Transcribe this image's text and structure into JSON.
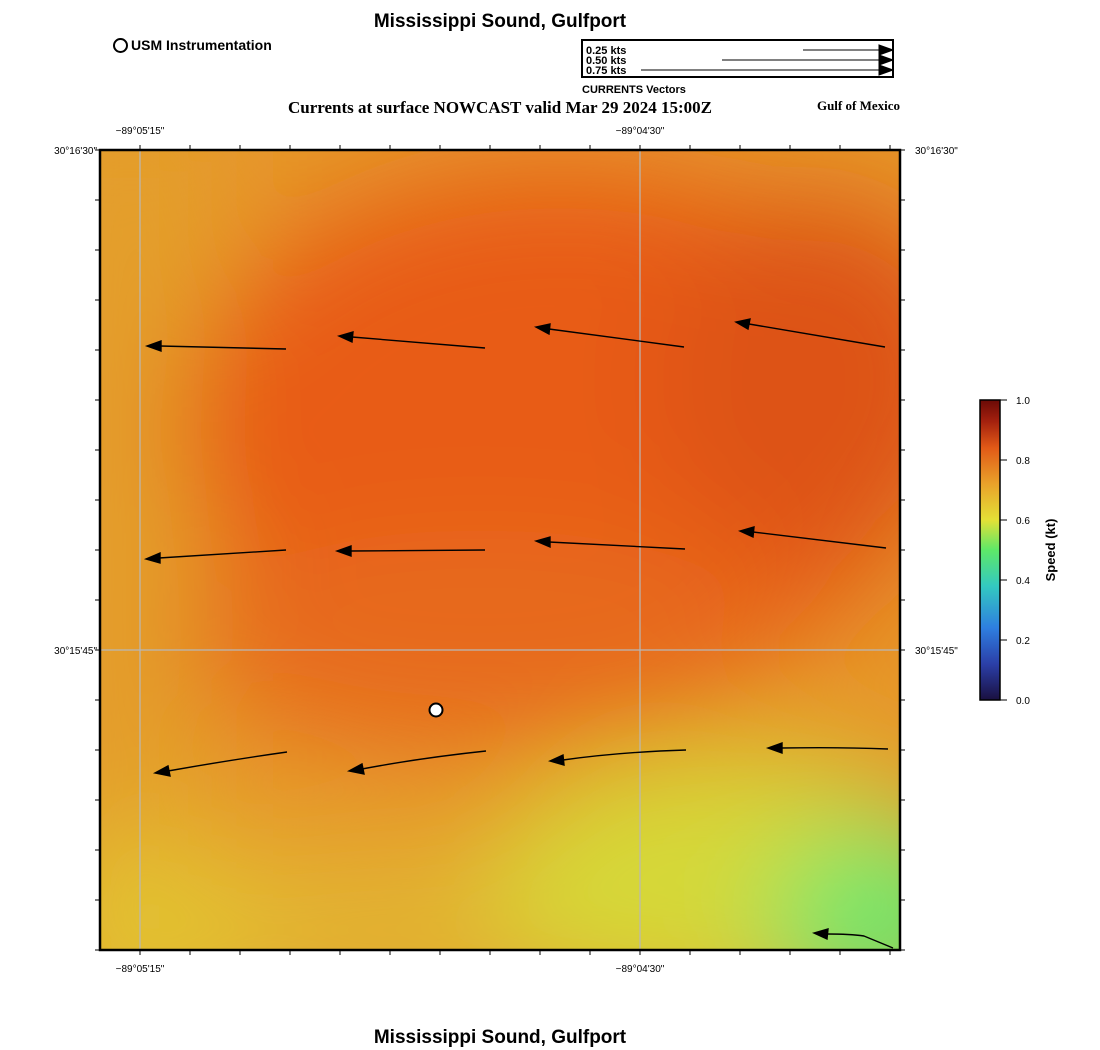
{
  "header": {
    "title": "Mississippi Sound, Gulfport",
    "subtitle": "Currents at surface NOWCAST valid Mar 29 2024 15:00Z",
    "region": "Gulf of Mexico",
    "footer_title": "Mississippi Sound, Gulfport"
  },
  "legend": {
    "station_label": "USM Instrumentation",
    "vector_scale": [
      {
        "label": "0.25 kts",
        "speed": 0.25
      },
      {
        "label": "0.50 kts",
        "speed": 0.5
      },
      {
        "label": "0.75 kts",
        "speed": 0.75
      }
    ],
    "vector_caption": "CURRENTS Vectors"
  },
  "map": {
    "lon_labels": [
      "−89°05'15\"",
      "−89°04'30\""
    ],
    "lat_labels": [
      "30°16'30\"",
      "30°15'45\""
    ]
  },
  "colorbar": {
    "title": "Speed (kt)",
    "ticks": [
      "0.0",
      "0.2",
      "0.4",
      "0.6",
      "0.8",
      "1.0"
    ],
    "min": 0.0,
    "max": 1.0,
    "colors": [
      "#1a1040",
      "#2e5ad8",
      "#33c9c0",
      "#5ee868",
      "#e3e036",
      "#e9a22a",
      "#e25a17",
      "#a3200e",
      "#6b0a06"
    ]
  }
}
